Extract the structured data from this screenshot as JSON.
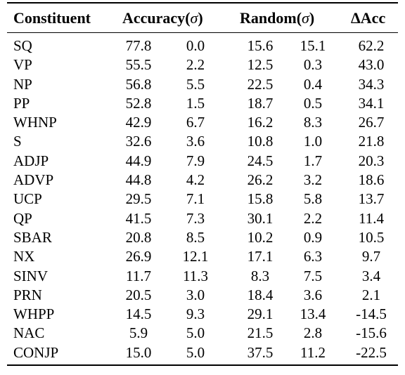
{
  "table": {
    "headers": {
      "constituent": "Constituent",
      "accuracy": "Accuracy",
      "random": "Random",
      "sigma": "σ",
      "delta_acc": "ΔAcc"
    },
    "rows": [
      {
        "constituent": "SQ",
        "acc": "77.8",
        "acc_sigma": "0.0",
        "random": "15.6",
        "random_sigma": "15.1",
        "delta": "62.2"
      },
      {
        "constituent": "VP",
        "acc": "55.5",
        "acc_sigma": "2.2",
        "random": "12.5",
        "random_sigma": "0.3",
        "delta": "43.0"
      },
      {
        "constituent": "NP",
        "acc": "56.8",
        "acc_sigma": "5.5",
        "random": "22.5",
        "random_sigma": "0.4",
        "delta": "34.3"
      },
      {
        "constituent": "PP",
        "acc": "52.8",
        "acc_sigma": "1.5",
        "random": "18.7",
        "random_sigma": "0.5",
        "delta": "34.1"
      },
      {
        "constituent": "WHNP",
        "acc": "42.9",
        "acc_sigma": "6.7",
        "random": "16.2",
        "random_sigma": "8.3",
        "delta": "26.7"
      },
      {
        "constituent": "S",
        "acc": "32.6",
        "acc_sigma": "3.6",
        "random": "10.8",
        "random_sigma": "1.0",
        "delta": "21.8"
      },
      {
        "constituent": "ADJP",
        "acc": "44.9",
        "acc_sigma": "7.9",
        "random": "24.5",
        "random_sigma": "1.7",
        "delta": "20.3"
      },
      {
        "constituent": "ADVP",
        "acc": "44.8",
        "acc_sigma": "4.2",
        "random": "26.2",
        "random_sigma": "3.2",
        "delta": "18.6"
      },
      {
        "constituent": "UCP",
        "acc": "29.5",
        "acc_sigma": "7.1",
        "random": "15.8",
        "random_sigma": "5.8",
        "delta": "13.7"
      },
      {
        "constituent": "QP",
        "acc": "41.5",
        "acc_sigma": "7.3",
        "random": "30.1",
        "random_sigma": "2.2",
        "delta": "11.4"
      },
      {
        "constituent": "SBAR",
        "acc": "20.8",
        "acc_sigma": "8.5",
        "random": "10.2",
        "random_sigma": "0.9",
        "delta": "10.5"
      },
      {
        "constituent": "NX",
        "acc": "26.9",
        "acc_sigma": "12.1",
        "random": "17.1",
        "random_sigma": "6.3",
        "delta": "9.7"
      },
      {
        "constituent": "SINV",
        "acc": "11.7",
        "acc_sigma": "11.3",
        "random": "8.3",
        "random_sigma": "7.5",
        "delta": "3.4"
      },
      {
        "constituent": "PRN",
        "acc": "20.5",
        "acc_sigma": "3.0",
        "random": "18.4",
        "random_sigma": "3.6",
        "delta": "2.1"
      },
      {
        "constituent": "WHPP",
        "acc": "14.5",
        "acc_sigma": "9.3",
        "random": "29.1",
        "random_sigma": "13.4",
        "delta": "-14.5"
      },
      {
        "constituent": "NAC",
        "acc": "5.9",
        "acc_sigma": "5.0",
        "random": "21.5",
        "random_sigma": "2.8",
        "delta": "-15.6"
      },
      {
        "constituent": "CONJP",
        "acc": "15.0",
        "acc_sigma": "5.0",
        "random": "37.5",
        "random_sigma": "11.2",
        "delta": "-22.5"
      }
    ]
  }
}
